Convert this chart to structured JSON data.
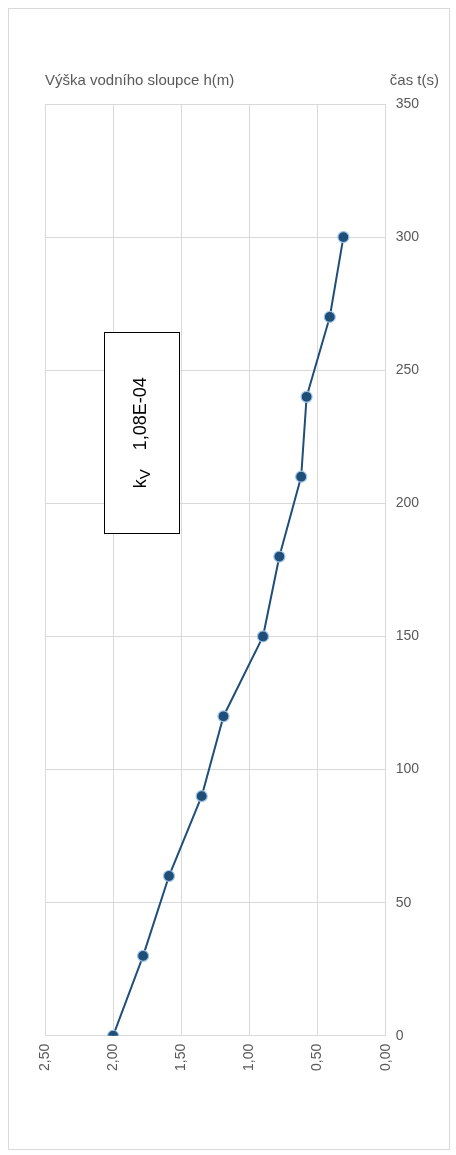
{
  "chart_data": {
    "type": "line",
    "xlabel": "Výška vodního sloupce h(m)",
    "ylabel": "čas t(s)",
    "series": [
      {
        "color": "#1f4e79",
        "x": [
          2.0,
          1.78,
          1.59,
          1.35,
          1.19,
          0.9,
          0.78,
          0.62,
          0.58,
          0.41,
          0.31
        ],
        "values": [
          0,
          30,
          60,
          90,
          120,
          150,
          180,
          210,
          240,
          270,
          300
        ]
      }
    ],
    "ylim": [
      0,
      350
    ],
    "yticks": [
      0,
      50,
      100,
      150,
      200,
      250,
      300,
      350
    ],
    "xlim": [
      2.5,
      0
    ],
    "xticks": [
      {
        "value": 2.5,
        "label": "2,50"
      },
      {
        "value": 2,
        "label": "2,00"
      },
      {
        "value": 1.5,
        "label": "1,50"
      },
      {
        "value": 1,
        "label": "1,00"
      },
      {
        "value": 0.5,
        "label": "0,50"
      },
      {
        "value": 0,
        "label": "0,00"
      }
    ],
    "annotations": [
      "k$_{V}$ 1,08E-04"
    ],
    "grid": true,
    "marker": "circle",
    "line_style": "solid"
  }
}
